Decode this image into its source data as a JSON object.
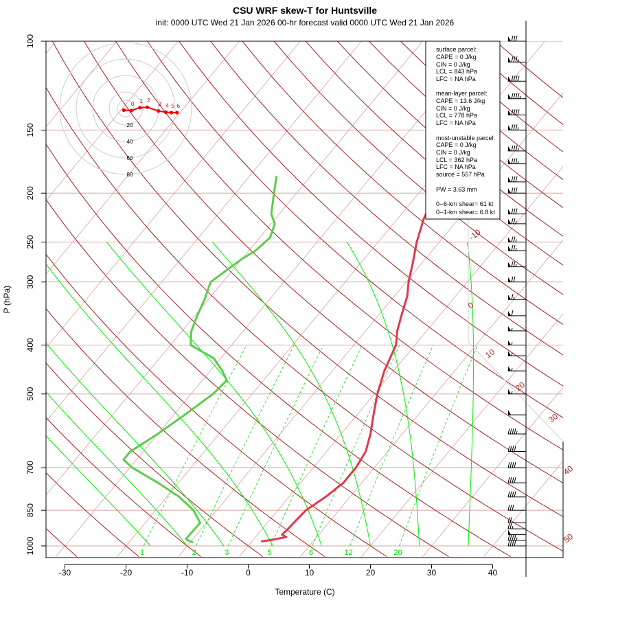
{
  "title": "CSU WRF skew-T for Huntsville",
  "subtitle": "init: 0000 UTC Wed 21 Jan 2026     00-hr forecast valid 0000 UTC Wed 21 Jan 2026",
  "colors": {
    "temperature": "#e0384f",
    "dewpoint": "#5ccc4c",
    "isotherm": "#d8a0a0",
    "isobar": "#d8a0a0",
    "dry_adiabat": "#a02020",
    "moist_adiabat": "#00ee00",
    "mixing_ratio": "#22cc22",
    "hodograph": "#ee0000"
  },
  "chart_data": {
    "type": "line",
    "xlabel": "Temperature (C)",
    "ylabel": "P (hPa)",
    "xlim": [
      -33,
      46
    ],
    "ylim": [
      1000,
      100
    ],
    "y_scale": "log",
    "grid": true,
    "x_ticks": [
      "-30",
      "-20",
      "-10",
      "0",
      "10",
      "20",
      "30",
      "40"
    ],
    "y_ticks": [
      "100",
      "150",
      "200",
      "250",
      "300",
      "400",
      "500",
      "700",
      "850",
      "1000"
    ],
    "series": [
      {
        "name": "temperature",
        "points": [
          [
            980,
            1.5
          ],
          [
            970,
            3.5
          ],
          [
            960,
            5
          ],
          [
            950,
            4
          ],
          [
            930,
            4.2
          ],
          [
            900,
            4.3
          ],
          [
            850,
            4.6
          ],
          [
            800,
            6.0
          ],
          [
            750,
            7.0
          ],
          [
            700,
            7.0
          ],
          [
            650,
            6.4
          ],
          [
            600,
            4.8
          ],
          [
            550,
            2.7
          ],
          [
            500,
            0.5
          ],
          [
            450,
            -1.5
          ],
          [
            400,
            -3.1
          ],
          [
            375,
            -4.8
          ],
          [
            350,
            -6.2
          ],
          [
            320,
            -7.9
          ],
          [
            300,
            -9.6
          ],
          [
            275,
            -11.5
          ],
          [
            250,
            -13.7
          ],
          [
            225,
            -15.7
          ],
          [
            200,
            -17.2
          ],
          [
            180,
            -18.5
          ],
          [
            165,
            -19.7
          ],
          [
            150,
            -21.1
          ],
          [
            135,
            -23.4
          ],
          [
            120,
            -25.9
          ],
          [
            105,
            -28.4
          ]
        ]
      },
      {
        "name": "dewpoint",
        "points": [
          [
            985,
            -9.5
          ],
          [
            970,
            -11.1
          ],
          [
            950,
            -11.1
          ],
          [
            900,
            -11.0
          ],
          [
            850,
            -13.8
          ],
          [
            800,
            -17.9
          ],
          [
            750,
            -23.3
          ],
          [
            700,
            -29.6
          ],
          [
            675,
            -32.1
          ],
          [
            650,
            -32.1
          ],
          [
            600,
            -30.0
          ],
          [
            550,
            -28.2
          ],
          [
            500,
            -26.4
          ],
          [
            470,
            -26.0
          ],
          [
            450,
            -28.0
          ],
          [
            425,
            -31.1
          ],
          [
            400,
            -36.7
          ],
          [
            375,
            -38.5
          ],
          [
            350,
            -39.6
          ],
          [
            325,
            -40.6
          ],
          [
            300,
            -42.0
          ],
          [
            280,
            -40.7
          ],
          [
            270,
            -40.0
          ],
          [
            260,
            -38.9
          ],
          [
            245,
            -38.3
          ],
          [
            230,
            -39.4
          ],
          [
            220,
            -41.3
          ],
          [
            200,
            -43.7
          ],
          [
            185,
            -45.6
          ]
        ]
      }
    ],
    "isotherms": [
      -100,
      -90,
      -80,
      -70,
      -60,
      -50,
      -40,
      -30,
      -20,
      -10,
      0,
      10,
      20,
      30,
      40
    ],
    "dry_adiabats_labels": [
      "-10",
      "0",
      "10",
      "20",
      "30",
      "40",
      "50"
    ],
    "mixing_ratio_labels": [
      "1",
      "2",
      "3",
      "5",
      "8",
      "12",
      "20"
    ],
    "wind_barbs": [
      {
        "p": 1000,
        "kt": 40
      },
      {
        "p": 975,
        "kt": 45
      },
      {
        "p": 950,
        "kt": 50
      },
      {
        "p": 925,
        "kt": 25
      },
      {
        "p": 900,
        "kt": 20
      },
      {
        "p": 850,
        "kt": 30
      },
      {
        "p": 800,
        "kt": 40
      },
      {
        "p": 750,
        "kt": 40
      },
      {
        "p": 700,
        "kt": 40
      },
      {
        "p": 650,
        "kt": 40
      },
      {
        "p": 600,
        "kt": 45
      },
      {
        "p": 550,
        "kt": 50
      },
      {
        "p": 500,
        "kt": 55
      },
      {
        "p": 450,
        "kt": 55
      },
      {
        "p": 420,
        "kt": 55
      },
      {
        "p": 400,
        "kt": 55
      },
      {
        "p": 375,
        "kt": 55
      },
      {
        "p": 350,
        "kt": 60
      },
      {
        "p": 325,
        "kt": 65
      },
      {
        "p": 300,
        "kt": 70
      },
      {
        "p": 280,
        "kt": 75
      },
      {
        "p": 260,
        "kt": 75
      },
      {
        "p": 250,
        "kt": 75
      },
      {
        "p": 230,
        "kt": 75
      },
      {
        "p": 220,
        "kt": 80
      },
      {
        "p": 200,
        "kt": 80
      },
      {
        "p": 190,
        "kt": 80
      },
      {
        "p": 175,
        "kt": 85
      },
      {
        "p": 165,
        "kt": 85
      },
      {
        "p": 150,
        "kt": 85
      },
      {
        "p": 140,
        "kt": 90
      },
      {
        "p": 130,
        "kt": 95
      },
      {
        "p": 120,
        "kt": 90
      },
      {
        "p": 110,
        "kt": 85
      },
      {
        "p": 100,
        "kt": 80
      }
    ],
    "hodograph": {
      "rings": [
        "20",
        "40",
        "60",
        "80"
      ],
      "points": [
        [
          -0.3,
          0.4
        ],
        [
          0.9,
          0.5
        ],
        [
          2.3,
          -0.2
        ],
        [
          3.5,
          -0.3
        ],
        [
          5.3,
          0.6
        ],
        [
          6.5,
          0.9
        ],
        [
          7.4,
          1.0
        ],
        [
          8.3,
          1.0
        ]
      ],
      "labels": [
        "0",
        "1",
        "2",
        "3",
        "4",
        "5",
        "6"
      ]
    }
  },
  "info_box": {
    "surface": [
      "surface parcel:",
      "CAPE = 0 J/kg",
      "CIN = 0 J/kg",
      "LCL = 843 hPa",
      "LFC = NA hPa"
    ],
    "mean_layer": [
      "mean-layer parcel:",
      "CAPE = 13.6 J/kg",
      "CIN = 0 J/kg",
      "LCL = 778 hPa",
      "LFC = NA hPa"
    ],
    "most_unstable": [
      "most-unstable parcel:",
      "CAPE = 0 J/kg",
      "CIN = 0 J/kg",
      "LCL = 362 hPa",
      "LFC = NA hPa",
      "source = 557 hPa"
    ],
    "pw": "PW =  3.63 mm",
    "shear": [
      "0--6-km shear= 61 kt",
      "0--1-km shear= 6.8 kt"
    ]
  }
}
